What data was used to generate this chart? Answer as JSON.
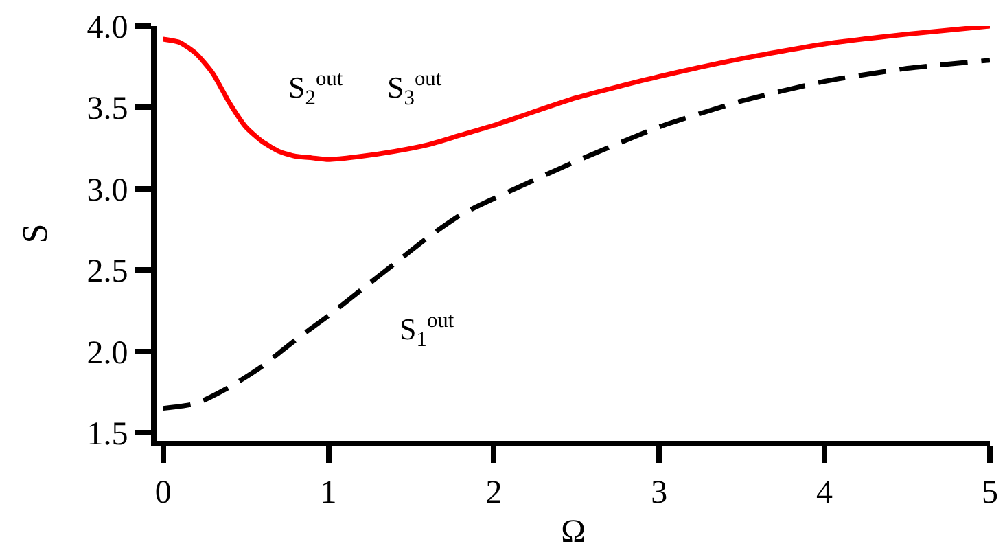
{
  "chart_data": {
    "type": "line",
    "xlabel": "Ω",
    "ylabel": "S",
    "xlim": [
      -0.04,
      5.0
    ],
    "ylim": [
      1.45,
      4.0
    ],
    "xticks": [
      0,
      1,
      2,
      3,
      4,
      5
    ],
    "yticks": [
      {
        "value": 1.5,
        "label": "1.5"
      },
      {
        "value": 2,
        "label": "2.0"
      },
      {
        "value": 2.5,
        "label": "2.5"
      },
      {
        "value": 3,
        "label": "3.0"
      },
      {
        "value": 3.5,
        "label": "3.5"
      },
      {
        "value": 4,
        "label": "4.0"
      }
    ],
    "series": [
      {
        "color": "#ff0000",
        "line_style": "solid",
        "x": [
          0,
          0.1,
          0.2,
          0.3,
          0.4,
          0.5,
          0.6,
          0.7,
          0.8,
          0.9,
          1.0,
          1.2,
          1.4,
          1.6,
          1.8,
          2.0,
          2.5,
          3.0,
          3.5,
          4.0,
          4.5,
          5.0
        ],
        "values": [
          3.92,
          3.9,
          3.83,
          3.71,
          3.53,
          3.38,
          3.29,
          3.23,
          3.2,
          3.19,
          3.18,
          3.2,
          3.23,
          3.27,
          3.33,
          3.39,
          3.56,
          3.69,
          3.8,
          3.89,
          3.95,
          4.0
        ]
      },
      {
        "color": "#000000",
        "line_style": "dashed",
        "x": [
          0,
          0.2,
          0.4,
          0.6,
          0.8,
          1.0,
          1.2,
          1.4,
          1.6,
          1.8,
          2.0,
          2.5,
          3.0,
          3.5,
          4.0,
          4.5,
          5.0
        ],
        "values": [
          1.65,
          1.68,
          1.78,
          1.91,
          2.07,
          2.22,
          2.38,
          2.54,
          2.7,
          2.84,
          2.94,
          3.17,
          3.38,
          3.54,
          3.66,
          3.74,
          3.79
        ]
      }
    ],
    "annotations": [
      "S$_{2}$$^{out}$",
      "S$_{3}$$^{out}$",
      "S$_{1}$$^{out}$"
    ]
  }
}
